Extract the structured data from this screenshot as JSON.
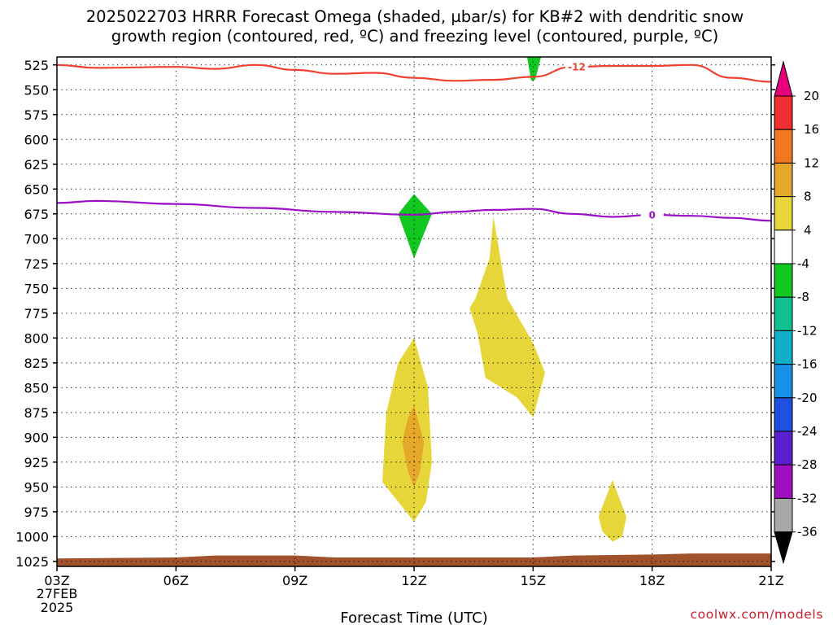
{
  "title_line1": "2025022703 HRRR Forecast Omega (shaded, µbar/s) for KB#2 with dendritic snow",
  "title_line2": "growth region (contoured, red, ºC) and freezing level (contoured, purple, ºC)",
  "credit": "coolwx.com/models",
  "chart_data": {
    "type": "time-height cross-section",
    "xlabel": "Forecast Time (UTC)",
    "ylabel": "",
    "x_ticks": [
      "03Z",
      "06Z",
      "09Z",
      "12Z",
      "15Z",
      "18Z",
      "21Z"
    ],
    "x_tick_hours": [
      3,
      6,
      9,
      12,
      15,
      18,
      21
    ],
    "x_date_line1": "27FEB",
    "x_date_line2": "2025",
    "xlim_hours": [
      3,
      21
    ],
    "y_ticks": [
      525,
      550,
      575,
      600,
      625,
      650,
      675,
      700,
      725,
      750,
      775,
      800,
      825,
      850,
      875,
      900,
      925,
      950,
      975,
      1000,
      1025
    ],
    "ylim_hPa": [
      517,
      1030
    ],
    "y_reversed": true,
    "grid": "dotted",
    "colorbar": {
      "labels": [
        "20",
        "16",
        "12",
        "8",
        "4",
        "-4",
        "-8",
        "-12",
        "-16",
        "-20",
        "-24",
        "-28",
        "-32",
        "-36"
      ],
      "levels": [
        20,
        16,
        12,
        8,
        4,
        -4,
        -8,
        -12,
        -16,
        -20,
        -24,
        -28,
        -32,
        -36
      ],
      "colors": [
        "#e6007a",
        "#f03030",
        "#f07820",
        "#e6a82a",
        "#e6d63a",
        "#ffffff",
        "#10c820",
        "#10c090",
        "#10b0c8",
        "#1890e8",
        "#2050e0",
        "#5a20d0",
        "#a010c0",
        "#a8a8a8",
        "#000000"
      ]
    },
    "contours": [
      {
        "name": "dendritic snow growth region",
        "label": "-12",
        "color": "#f04030",
        "points": [
          [
            3,
            525
          ],
          [
            4,
            528
          ],
          [
            6,
            527
          ],
          [
            7,
            529
          ],
          [
            8,
            525
          ],
          [
            9,
            530
          ],
          [
            10,
            534
          ],
          [
            11,
            533
          ],
          [
            12,
            538
          ],
          [
            13,
            541
          ],
          [
            14,
            540
          ],
          [
            15,
            537
          ],
          [
            16,
            527
          ],
          [
            17,
            526
          ],
          [
            18,
            526
          ],
          [
            19,
            525
          ],
          [
            20,
            538
          ],
          [
            21,
            542
          ]
        ]
      },
      {
        "name": "freezing level",
        "label": "0",
        "color": "#9a10c8",
        "points": [
          [
            3,
            664
          ],
          [
            4,
            662
          ],
          [
            6,
            665
          ],
          [
            8,
            669
          ],
          [
            10,
            673
          ],
          [
            12,
            676
          ],
          [
            13,
            673
          ],
          [
            14,
            671
          ],
          [
            15,
            670
          ],
          [
            16,
            675
          ],
          [
            17,
            678
          ],
          [
            18,
            676
          ],
          [
            19,
            677
          ],
          [
            20,
            679
          ],
          [
            21,
            682
          ]
        ]
      }
    ],
    "shaded_regions": [
      {
        "color": "#10c820",
        "points": [
          [
            14.85,
            517
          ],
          [
            15.2,
            517
          ],
          [
            15.05,
            540
          ],
          [
            14.95,
            541
          ]
        ]
      },
      {
        "color": "#10c820",
        "points": [
          [
            12.0,
            655
          ],
          [
            12.45,
            675
          ],
          [
            12.0,
            720
          ],
          [
            11.6,
            675
          ]
        ]
      },
      {
        "color": "#e6d63a",
        "points": [
          [
            14.0,
            678
          ],
          [
            14.35,
            760
          ],
          [
            15.0,
            805
          ],
          [
            15.3,
            835
          ],
          [
            15.0,
            880
          ],
          [
            14.6,
            860
          ],
          [
            13.8,
            840
          ],
          [
            13.6,
            795
          ],
          [
            13.4,
            770
          ],
          [
            13.55,
            760
          ],
          [
            13.9,
            720
          ]
        ]
      },
      {
        "color": "#e6d63a",
        "points": [
          [
            12.0,
            800
          ],
          [
            12.35,
            850
          ],
          [
            12.45,
            925
          ],
          [
            12.3,
            965
          ],
          [
            12.0,
            985
          ],
          [
            11.7,
            970
          ],
          [
            11.2,
            945
          ],
          [
            11.3,
            875
          ],
          [
            11.6,
            825
          ]
        ]
      },
      {
        "color": "#e6a82a",
        "points": [
          [
            12.0,
            868
          ],
          [
            12.25,
            905
          ],
          [
            12.15,
            935
          ],
          [
            12.0,
            950
          ],
          [
            11.85,
            935
          ],
          [
            11.7,
            905
          ],
          [
            11.85,
            880
          ]
        ]
      },
      {
        "color": "#e6d63a",
        "points": [
          [
            17.0,
            943
          ],
          [
            17.35,
            980
          ],
          [
            17.25,
            1000
          ],
          [
            17.0,
            1005
          ],
          [
            16.75,
            995
          ],
          [
            16.65,
            980
          ]
        ]
      }
    ],
    "terrain": {
      "color": "#a0522d",
      "top_points": [
        [
          3,
          1022
        ],
        [
          6,
          1021
        ],
        [
          7,
          1019
        ],
        [
          9,
          1019
        ],
        [
          10,
          1021
        ],
        [
          12,
          1021
        ],
        [
          15,
          1021
        ],
        [
          16,
          1019
        ],
        [
          18,
          1018
        ],
        [
          19,
          1017
        ],
        [
          21,
          1017
        ]
      ]
    }
  }
}
